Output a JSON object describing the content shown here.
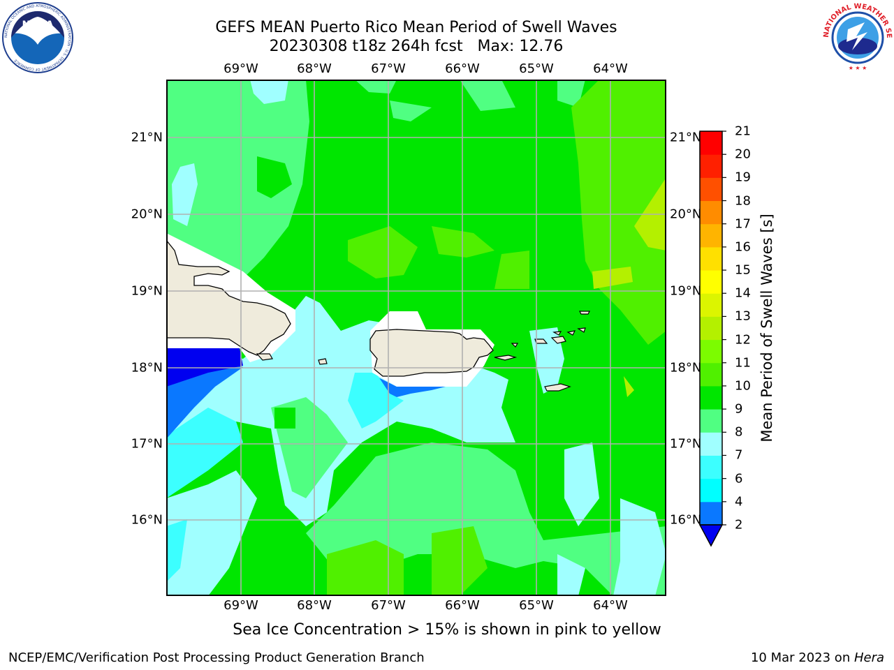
{
  "header": {
    "title_line1": "GEFS MEAN Puerto Rico Mean Period of Swell Waves",
    "title_line2": "20230308 t18z 264h fcst   Max: 12.76"
  },
  "logos": {
    "noaa": {
      "text": "NOAA",
      "ring_text": "NATIONAL OCEANIC AND ATMOSPHERIC ADMINISTRATION · U.S. DEPARTMENT OF COMMERCE"
    },
    "nws": {
      "ring_text": "NATIONAL WEATHER SERVICE"
    }
  },
  "map": {
    "lon_labels": [
      "69°W",
      "68°W",
      "67°W",
      "66°W",
      "65°W",
      "64°W"
    ],
    "lat_labels": [
      "21°N",
      "20°N",
      "19°N",
      "18°N",
      "17°N",
      "16°N"
    ],
    "land_color": "#efebdc",
    "grid_color": "#b0b0b0"
  },
  "colorbar": {
    "title": "Mean Period of Swell Waves [s]",
    "levels": [
      "2",
      "4",
      "6",
      "7",
      "8",
      "9",
      "10",
      "11",
      "12",
      "13",
      "14",
      "15",
      "16",
      "17",
      "18",
      "19",
      "20",
      "21"
    ],
    "colors": [
      "#0000f0",
      "#0a78ff",
      "#00ffff",
      "#3cffff",
      "#a0ffff",
      "#50ff82",
      "#00e600",
      "#50f000",
      "#7cfc00",
      "#b4f000",
      "#dcf500",
      "#ffff00",
      "#ffe000",
      "#ffb400",
      "#ff8c00",
      "#ff5000",
      "#ff2000",
      "#ff0000"
    ],
    "extend": "min"
  },
  "notes": {
    "sea_ice": "Sea Ice Concentration > 15% is shown in pink to yellow"
  },
  "footer": {
    "left": "NCEP/EMC/Verification Post Processing Product Generation Branch",
    "date": "10 Mar 2023 on ",
    "host": "Hera"
  }
}
